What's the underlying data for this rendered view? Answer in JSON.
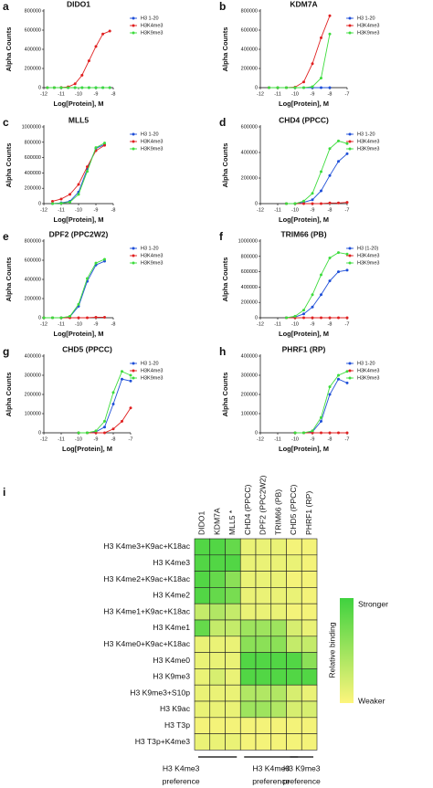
{
  "chart_data": [
    {
      "type": "line",
      "label": "a",
      "title": "DIDO1",
      "x_label": "Log[Protein], M",
      "y_label": "Alpha Counts",
      "xlim": [
        -12,
        -8
      ],
      "xticks": [
        -12,
        -11,
        -10,
        -9,
        -8
      ],
      "ylim": [
        0,
        800000
      ],
      "yticks": [
        0,
        200000,
        400000,
        600000,
        800000
      ],
      "x": [
        -11.8,
        -11.4,
        -11,
        -10.6,
        -10.2,
        -9.8,
        -9.4,
        -9,
        -8.6,
        -8.2
      ],
      "series": [
        {
          "name": "H3 1-20",
          "color": "#1f4fd8",
          "values": [
            0,
            0,
            0,
            0,
            0,
            0,
            0,
            0,
            0,
            0
          ]
        },
        {
          "name": "H3K4me3",
          "color": "#e02020",
          "values": [
            0,
            0,
            2000,
            8000,
            40000,
            130000,
            280000,
            430000,
            560000,
            590000
          ]
        },
        {
          "name": "H3K9me3",
          "color": "#3ddc3d",
          "values": [
            0,
            0,
            0,
            0,
            0,
            0,
            0,
            0,
            0,
            0
          ]
        }
      ]
    },
    {
      "type": "line",
      "label": "b",
      "title": "KDM7A",
      "x_label": "Log[Protein], M",
      "y_label": "Alpha Counts",
      "xlim": [
        -12,
        -7
      ],
      "xticks": [
        -12,
        -11,
        -10,
        -9,
        -8,
        -7
      ],
      "ylim": [
        0,
        800000
      ],
      "yticks": [
        0,
        200000,
        400000,
        600000,
        800000
      ],
      "x": [
        -11.5,
        -11,
        -10.5,
        -10,
        -9.5,
        -9,
        -8.5,
        -8
      ],
      "series": [
        {
          "name": "H3 1-20",
          "color": "#1f4fd8",
          "values": [
            0,
            0,
            0,
            0,
            0,
            0,
            0,
            0
          ]
        },
        {
          "name": "H3K4me3",
          "color": "#e02020",
          "values": [
            0,
            0,
            0,
            5000,
            60000,
            250000,
            520000,
            750000
          ]
        },
        {
          "name": "H3K9me3",
          "color": "#3ddc3d",
          "values": [
            0,
            0,
            0,
            0,
            0,
            10000,
            100000,
            560000
          ]
        }
      ]
    },
    {
      "type": "line",
      "label": "c",
      "title": "MLL5",
      "x_label": "Log[Protein], M",
      "y_label": "Alpha Counts",
      "xlim": [
        -12,
        -8
      ],
      "xticks": [
        -12,
        -11,
        -10,
        -9,
        -8
      ],
      "ylim": [
        0,
        1000000
      ],
      "yticks": [
        0,
        200000,
        400000,
        600000,
        800000,
        1000000
      ],
      "x": [
        -11.5,
        -11,
        -10.5,
        -10,
        -9.5,
        -9,
        -8.5
      ],
      "series": [
        {
          "name": "H3 1-20",
          "color": "#1f4fd8",
          "values": [
            0,
            10000,
            30000,
            150000,
            450000,
            720000,
            770000
          ]
        },
        {
          "name": "H3K4me3",
          "color": "#e02020",
          "values": [
            30000,
            60000,
            120000,
            250000,
            480000,
            690000,
            760000
          ]
        },
        {
          "name": "H3K9me3",
          "color": "#3ddc3d",
          "values": [
            0,
            5000,
            20000,
            120000,
            420000,
            730000,
            790000
          ]
        }
      ]
    },
    {
      "type": "line",
      "label": "d",
      "title": "CHD4 (PPCC)",
      "x_label": "Log[Protein], M",
      "y_label": "Alpha Counts",
      "xlim": [
        -12,
        -7
      ],
      "xticks": [
        -12,
        -11,
        -10,
        -9,
        -8,
        -7
      ],
      "ylim": [
        0,
        600000
      ],
      "yticks": [
        0,
        200000,
        400000,
        600000
      ],
      "x": [
        -10.5,
        -10,
        -9.5,
        -9,
        -8.5,
        -8,
        -7.5,
        -7
      ],
      "series": [
        {
          "name": "H3 1-20",
          "color": "#1f4fd8",
          "values": [
            0,
            0,
            10000,
            30000,
            100000,
            220000,
            330000,
            390000
          ]
        },
        {
          "name": "H3K4me3",
          "color": "#e02020",
          "values": [
            0,
            0,
            0,
            0,
            0,
            5000,
            5000,
            10000
          ]
        },
        {
          "name": "H3K9me3",
          "color": "#3ddc3d",
          "values": [
            0,
            0,
            20000,
            80000,
            250000,
            430000,
            490000,
            470000
          ]
        }
      ]
    },
    {
      "type": "line",
      "label": "e",
      "title": "DPF2 (PPC2W2)",
      "x_label": "Log[Protein], M",
      "y_label": "Alpha Counts",
      "xlim": [
        -12,
        -8
      ],
      "xticks": [
        -12,
        -11,
        -10,
        -9,
        -8
      ],
      "ylim": [
        0,
        800000
      ],
      "yticks": [
        0,
        200000,
        400000,
        600000,
        800000
      ],
      "x": [
        -12,
        -11.5,
        -11,
        -10.5,
        -10,
        -9.5,
        -9,
        -8.5
      ],
      "series": [
        {
          "name": "H3 1-20",
          "color": "#1f4fd8",
          "values": [
            0,
            0,
            0,
            10000,
            120000,
            380000,
            550000,
            590000
          ]
        },
        {
          "name": "H3K4me3",
          "color": "#e02020",
          "values": [
            0,
            0,
            0,
            0,
            0,
            0,
            5000,
            5000
          ]
        },
        {
          "name": "H3K9me3",
          "color": "#3ddc3d",
          "values": [
            0,
            0,
            0,
            15000,
            140000,
            410000,
            570000,
            610000
          ]
        }
      ]
    },
    {
      "type": "line",
      "label": "f",
      "title": "TRIM66 (PB)",
      "x_label": "Log[Protein], M",
      "y_label": "Alpha Counts",
      "xlim": [
        -12,
        -7
      ],
      "xticks": [
        -12,
        -11,
        -10,
        -9,
        -8,
        -7
      ],
      "ylim": [
        0,
        1000000
      ],
      "yticks": [
        0,
        200000,
        400000,
        600000,
        800000,
        1000000
      ],
      "x": [
        -10.5,
        -10,
        -9.5,
        -9,
        -8.5,
        -8,
        -7.5,
        -7
      ],
      "series": [
        {
          "name": "H3 (1-20)",
          "color": "#1f4fd8",
          "values": [
            0,
            10000,
            50000,
            140000,
            300000,
            480000,
            600000,
            620000
          ]
        },
        {
          "name": "H3K4me3",
          "color": "#e02020",
          "values": [
            0,
            0,
            0,
            0,
            0,
            0,
            0,
            0
          ]
        },
        {
          "name": "H3K9me3",
          "color": "#3ddc3d",
          "values": [
            0,
            20000,
            100000,
            300000,
            560000,
            780000,
            850000,
            830000
          ]
        }
      ]
    },
    {
      "type": "line",
      "label": "g",
      "title": "CHD5 (PPCC)",
      "x_label": "Log[Protein], M",
      "y_label": "Alpha Counts",
      "xlim": [
        -12,
        -7
      ],
      "xticks": [
        -12,
        -11,
        -10,
        -9,
        -8,
        -7
      ],
      "ylim": [
        0,
        400000
      ],
      "yticks": [
        0,
        100000,
        200000,
        300000,
        400000
      ],
      "x": [
        -10,
        -9.5,
        -9,
        -8.5,
        -8,
        -7.5,
        -7
      ],
      "series": [
        {
          "name": "H3 1-20",
          "color": "#1f4fd8",
          "values": [
            0,
            0,
            5000,
            30000,
            150000,
            280000,
            270000
          ]
        },
        {
          "name": "H3K4me3",
          "color": "#e02020",
          "values": [
            0,
            0,
            0,
            0,
            20000,
            60000,
            130000
          ]
        },
        {
          "name": "H3K9me3",
          "color": "#3ddc3d",
          "values": [
            0,
            0,
            10000,
            60000,
            210000,
            320000,
            300000
          ]
        }
      ]
    },
    {
      "type": "line",
      "label": "h",
      "title": "PHRF1 (RP)",
      "x_label": "Log[Protein], M",
      "y_label": "Alpha Counts",
      "xlim": [
        -12,
        -7
      ],
      "xticks": [
        -12,
        -11,
        -10,
        -9,
        -8,
        -7
      ],
      "ylim": [
        0,
        400000
      ],
      "yticks": [
        0,
        100000,
        200000,
        300000,
        400000
      ],
      "x": [
        -10,
        -9.5,
        -9,
        -8.5,
        -8,
        -7.5,
        -7
      ],
      "series": [
        {
          "name": "H3 1-20",
          "color": "#1f4fd8",
          "values": [
            0,
            0,
            5000,
            60000,
            200000,
            280000,
            260000
          ]
        },
        {
          "name": "H3K4me3",
          "color": "#e02020",
          "values": [
            0,
            0,
            0,
            0,
            0,
            0,
            0
          ]
        },
        {
          "name": "H3K9me3",
          "color": "#3ddc3d",
          "values": [
            0,
            0,
            10000,
            80000,
            240000,
            300000,
            320000
          ]
        }
      ]
    },
    {
      "type": "heatmap",
      "label": "i",
      "x_categories": [
        "DIDO1",
        "KDM7A",
        "MLL5 *",
        "CHD4 (PPCC)",
        "DPF2 (PPC2W2)",
        "TRIM66 (PB)",
        "CHD5 (PPCC)",
        "PHRF1 (RP)"
      ],
      "y_categories": [
        "H3 K4me3+K9ac+K18ac",
        "H3 K4me3",
        "H3 K4me2+K9ac+K18ac",
        "H3 K4me2",
        "H3 K4me1+K9ac+K18ac",
        "H3 K4me1",
        "H3 K4me0+K9ac+K18ac",
        "H3 K4me0",
        "H3 K9me3",
        "H3 K9me3+S10p",
        "H3 K9ac",
        "H3 T3p",
        "H3 T3p+K4me3"
      ],
      "values": [
        [
          0.9,
          0.9,
          0.8,
          0.1,
          0.1,
          0.1,
          0.05,
          0.05
        ],
        [
          0.9,
          0.9,
          0.9,
          0.1,
          0.1,
          0.1,
          0.1,
          0.05
        ],
        [
          0.9,
          0.8,
          0.6,
          0.1,
          0.1,
          0.1,
          0.05,
          0.05
        ],
        [
          0.9,
          0.8,
          0.7,
          0.1,
          0.1,
          0.1,
          0.1,
          0.05
        ],
        [
          0.3,
          0.4,
          0.3,
          0.1,
          0.1,
          0.1,
          0.05,
          0.05
        ],
        [
          0.8,
          0.3,
          0.3,
          0.5,
          0.5,
          0.5,
          0.2,
          0.1
        ],
        [
          0.1,
          0.1,
          0.1,
          0.6,
          0.6,
          0.6,
          0.3,
          0.3
        ],
        [
          0.1,
          0.1,
          0.1,
          0.9,
          0.9,
          0.9,
          0.9,
          0.6
        ],
        [
          0.1,
          0.2,
          0.1,
          0.9,
          0.9,
          0.9,
          0.9,
          0.9
        ],
        [
          0.1,
          0.1,
          0.1,
          0.4,
          0.4,
          0.4,
          0.2,
          0.1
        ],
        [
          0.1,
          0.1,
          0.1,
          0.5,
          0.5,
          0.4,
          0.2,
          0.2
        ],
        [
          0.05,
          0.05,
          0.05,
          0.05,
          0.05,
          0.05,
          0.05,
          0.05
        ],
        [
          0.1,
          0.1,
          0.1,
          0.05,
          0.05,
          0.05,
          0.05,
          0.05
        ]
      ],
      "zlim": [
        0,
        1
      ],
      "low_color": "#fdf57c",
      "high_color": "#3fd23f",
      "colorbar_title": "Relative binding",
      "high_label": "Stronger",
      "low_label": "Weaker",
      "groups": [
        {
          "lines": [
            "H3 K4me3",
            "preference"
          ],
          "columns": [
            0,
            2
          ]
        },
        {
          "lines": [
            "H3 K4me0",
            "preference"
          ],
          "columns": [
            3,
            6
          ]
        },
        {
          "lines": [
            "H3 K9me3",
            "preference"
          ],
          "columns": [
            6,
            7
          ]
        }
      ]
    }
  ]
}
